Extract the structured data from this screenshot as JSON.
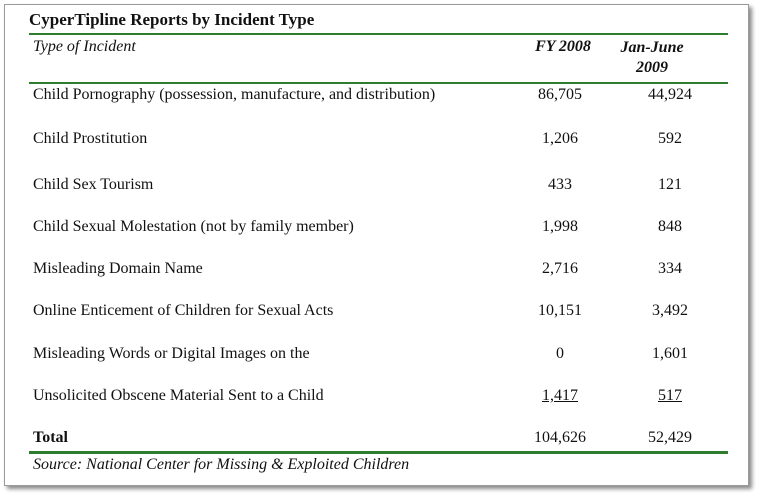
{
  "title": "CyperTipline Reports by Incident Type",
  "headers": {
    "type": "Type of Incident",
    "fy": "FY 2008",
    "jan_june_line1": "Jan-June",
    "jan_june_line2": "2009"
  },
  "rows": [
    {
      "label": "Child Pornography (possession, manufacture, and distribution)",
      "fy2008": "86,705",
      "jan_june_2009": "44,924"
    },
    {
      "label": "Child Prostitution",
      "fy2008": "1,206",
      "jan_june_2009": "592"
    },
    {
      "label": "Child Sex Tourism",
      "fy2008": "433",
      "jan_june_2009": "121"
    },
    {
      "label": "Child Sexual Molestation (not by family member)",
      "fy2008": "1,998",
      "jan_june_2009": "848"
    },
    {
      "label": "Misleading Domain Name",
      "fy2008": "2,716",
      "jan_june_2009": "334"
    },
    {
      "label": "Online Enticement of Children for Sexual Acts",
      "fy2008": "10,151",
      "jan_june_2009": "3,492"
    },
    {
      "label": "Misleading Words or Digital Images on the",
      "fy2008": "0",
      "jan_june_2009": "1,601"
    },
    {
      "label": "Unsolicited Obscene Material Sent to a Child",
      "fy2008": "1,417",
      "jan_june_2009": "517"
    }
  ],
  "total": {
    "label": "Total",
    "fy2008": "104,626",
    "jan_june_2009": "52,429"
  },
  "source": "Source: National Center for Missing & Exploited Children",
  "colors": {
    "rule": "#2e7d2e"
  }
}
